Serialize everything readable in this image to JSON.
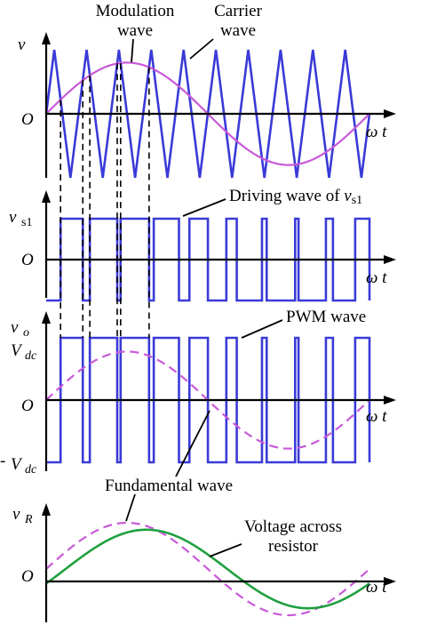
{
  "colors": {
    "carrier": "#3a3ad8",
    "modulation": "#c85ad8",
    "fundamental": "#c85ad8",
    "resistor_voltage": "#20a040",
    "axis": "#000000"
  },
  "labels": {
    "modulation_wave": [
      "Modulation",
      "wave"
    ],
    "carrier_wave": [
      "Carrier",
      "wave"
    ],
    "driving_wave": "Driving wave of ",
    "driving_wave_var": "v",
    "driving_wave_sub": "s1",
    "pwm_wave": "PWM wave",
    "fundamental_wave": "Fundamental wave",
    "voltage_across_resistor": [
      "Voltage across",
      "resistor"
    ]
  },
  "panels": {
    "p1": {
      "y_var": "v",
      "origin": "O",
      "x_label": "ω t"
    },
    "p2": {
      "y_var": "v",
      "y_sub": "s1",
      "origin": "O",
      "x_label": "ω t"
    },
    "p3": {
      "y_var": "v",
      "y_sub": "o",
      "origin": "O",
      "x_label": "ω t",
      "top_label": "V",
      "top_sub": "dc",
      "bottom_prefix": "-",
      "bottom_label": "V",
      "bottom_sub": "dc"
    },
    "p4": {
      "y_var": "v",
      "y_sub": "R",
      "origin": "O",
      "x_label": "ω t"
    }
  },
  "signal": {
    "carrier_periods": 10,
    "modulation_amplitude_ratio": 0.8,
    "resistor_amplitude_ratio": 0.85,
    "resistor_phase_lag_periods": 0.06
  }
}
